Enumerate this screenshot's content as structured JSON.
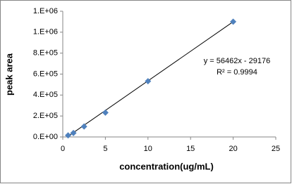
{
  "chart_data": {
    "type": "scatter",
    "x_label": "concentration(ug/mL)",
    "y_label": "peak area",
    "series": [
      {
        "x": [
          0.625,
          1.25,
          2.5,
          5,
          10,
          20
        ],
        "values": [
          15000,
          38000,
          100000,
          232000,
          532000,
          1100000
        ],
        "color": "#4f81bd"
      }
    ],
    "trendline": {
      "slope": 56462,
      "intercept": -29176,
      "color": "#000000"
    },
    "annotations": [
      "y = 56462x - 29176",
      "R² = 0.9994"
    ],
    "xlim": [
      0,
      25
    ],
    "xticks": [
      0,
      5,
      10,
      15,
      20,
      25
    ],
    "ylim": [
      0,
      1200000
    ],
    "yticks": [
      {
        "value": 0,
        "label": "0.E+00"
      },
      {
        "value": 200000,
        "label": "2.E+05"
      },
      {
        "value": 400000,
        "label": "4.E+05"
      },
      {
        "value": 600000,
        "label": "6.E+05"
      },
      {
        "value": 800000,
        "label": "8.E+05"
      },
      {
        "value": 1000000,
        "label": "1.E+06"
      },
      {
        "value": 1200000,
        "label": "1.E+06"
      }
    ]
  }
}
